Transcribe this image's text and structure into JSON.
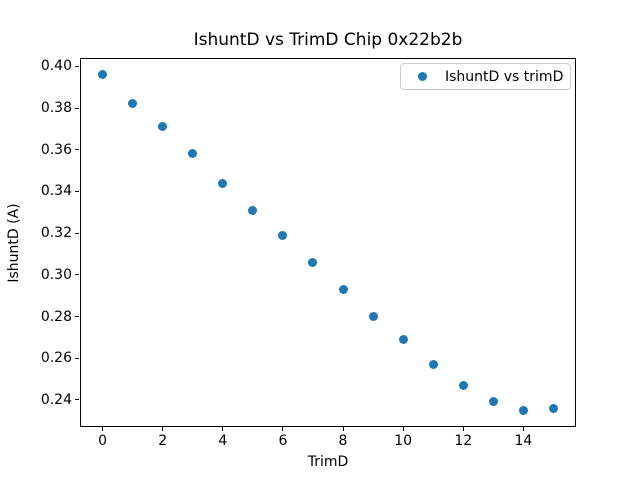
{
  "chart_data": {
    "type": "scatter",
    "title": "IshuntD vs TrimD Chip 0x22b2b",
    "xlabel": "TrimD",
    "ylabel": "IshuntD (A)",
    "series": [
      {
        "name": "IshuntD vs trimD",
        "color": "#1f77b4",
        "x": [
          0,
          1,
          2,
          3,
          4,
          5,
          6,
          7,
          8,
          9,
          10,
          11,
          12,
          13,
          14,
          15
        ],
        "y": [
          0.396,
          0.382,
          0.371,
          0.358,
          0.344,
          0.331,
          0.319,
          0.306,
          0.293,
          0.28,
          0.269,
          0.257,
          0.247,
          0.239,
          0.235,
          0.236
        ]
      }
    ],
    "xlim": [
      -0.75,
      15.75
    ],
    "ylim": [
      0.227,
      0.404
    ],
    "xticks": [
      "0",
      "2",
      "4",
      "6",
      "8",
      "10",
      "12",
      "14"
    ],
    "yticks": [
      "0.24",
      "0.26",
      "0.28",
      "0.30",
      "0.32",
      "0.34",
      "0.36",
      "0.38",
      "0.40"
    ],
    "grid": false,
    "legend": {
      "position": "upper-right",
      "entries": [
        "IshuntD vs trimD"
      ]
    }
  }
}
